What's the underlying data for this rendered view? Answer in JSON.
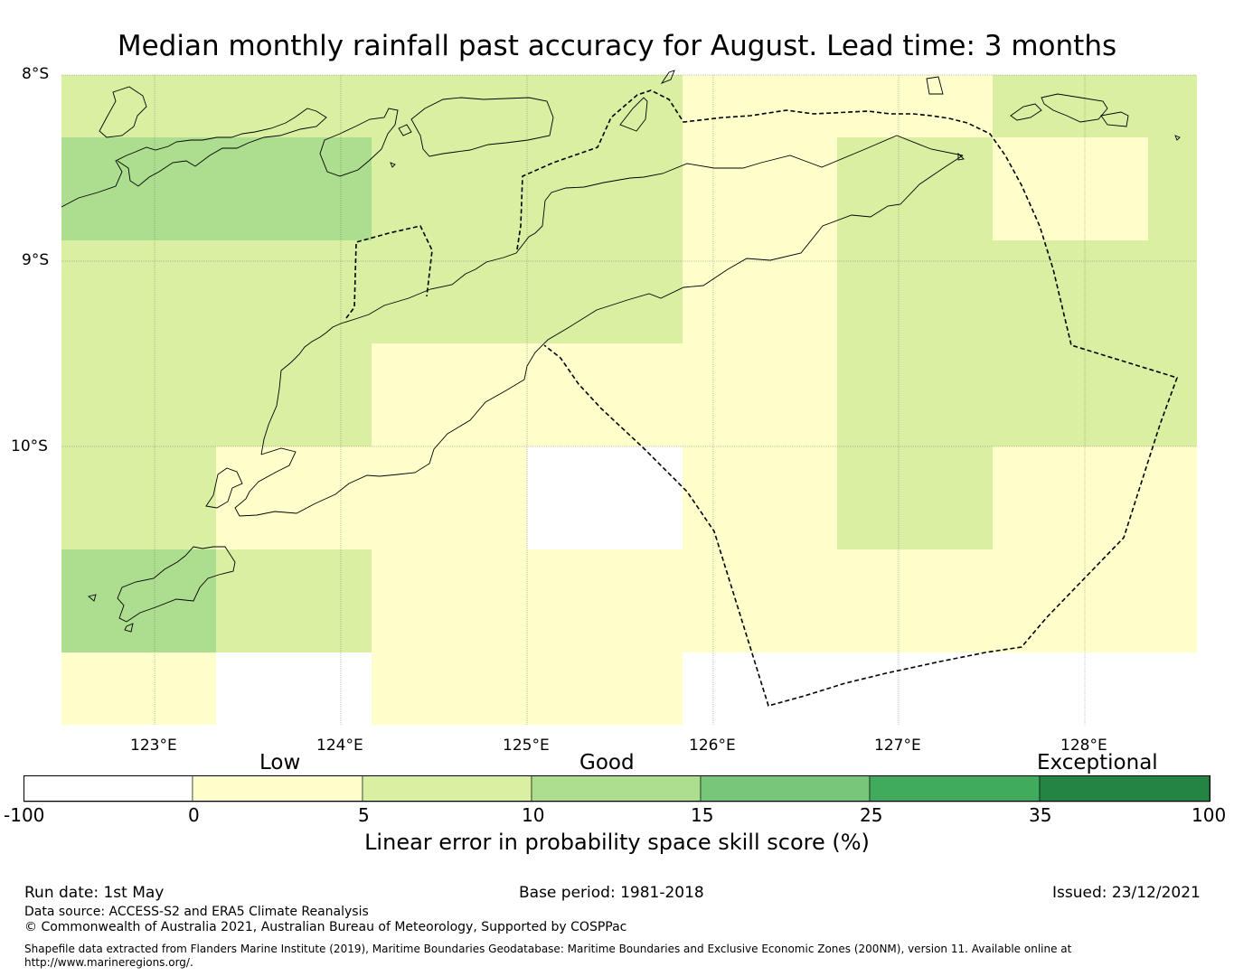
{
  "title": "Median monthly rainfall past accuracy for August. Lead time: 3 months",
  "map": {
    "lat_labels": [
      "8°S",
      "9°S",
      "10°S"
    ],
    "lon_labels": [
      "123°E",
      "124°E",
      "125°E",
      "126°E",
      "127°E",
      "128°E"
    ],
    "lon_range": [
      122.5,
      128.6
    ],
    "lat_range": [
      -11.5,
      -8.0
    ],
    "cell_size_deg": 0.833,
    "skill_grid_note": "rows from north to south, cols from west to east; values are colour-class indices (-1 = below 0, 0 = 0-5, 1 = 5-10, 2 = 10-15)",
    "skill_grid": [
      [
        1,
        1,
        1,
        1,
        0,
        0,
        1,
        1
      ],
      [
        2,
        2,
        1,
        1,
        0,
        1,
        0,
        1
      ],
      [
        1,
        1,
        1,
        1,
        0,
        1,
        1,
        1
      ],
      [
        1,
        1,
        0,
        0,
        0,
        1,
        1,
        1
      ],
      [
        1,
        0,
        0,
        -1,
        0,
        1,
        0,
        0
      ],
      [
        2,
        1,
        0,
        0,
        0,
        0,
        0,
        0
      ],
      [
        0,
        -1,
        0,
        0,
        -1,
        -1,
        -1,
        -1
      ]
    ]
  },
  "colorbar": {
    "categories": [
      "Low",
      "Good",
      "Exceptional"
    ],
    "ticks": [
      "-100",
      "0",
      "5",
      "10",
      "15",
      "25",
      "35",
      "100"
    ],
    "colors": [
      "#ffffff",
      "#ffffcc",
      "#d9f0a3",
      "#addd8e",
      "#78c679",
      "#41ab5d",
      "#238443"
    ],
    "label": "Linear error in probability space skill score (%)"
  },
  "footer": {
    "run_date": "Run date: 1st May",
    "base_period": "Base period: 1981-2018",
    "issued": "Issued: 23/12/2021",
    "data_source": "Data source: ACCESS-S2 and ERA5 Climate Reanalysis",
    "copyright": "© Commonwealth of Australia 2021, Australian Bureau of Meteorology, Supported by COSPPac",
    "shapefile_line1": "Shapefile data extracted from Flanders Marine Institute (2019), Maritime Boundaries Geodatabase: Maritime Boundaries and Exclusive Economic Zones (200NM), version 11. Available online at",
    "shapefile_line2": "http://www.marineregions.org/."
  }
}
